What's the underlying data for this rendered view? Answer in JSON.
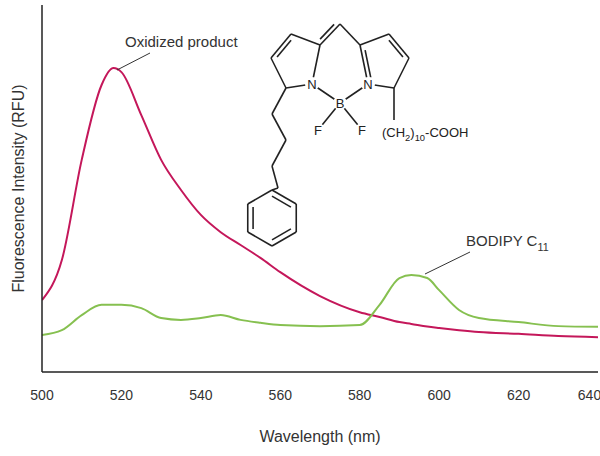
{
  "chart_data": {
    "type": "line",
    "x_label": "Wavelength (nm)",
    "y_label": "Fluorescence Intensity (RFU)",
    "x": [
      500,
      505,
      510,
      515,
      518,
      520,
      525,
      530,
      535,
      540,
      545,
      550,
      555,
      560,
      570,
      580,
      585,
      590,
      593,
      597,
      600,
      605,
      610,
      620,
      630,
      640
    ],
    "series": [
      {
        "name": "Oxidized product",
        "color": "#c4175a",
        "line_style": "solid",
        "marker": "none",
        "values": [
          19.6,
          30.5,
          57.8,
          78.2,
          82.8,
          81.7,
          70,
          57.8,
          49.6,
          42.8,
          38.1,
          34.6,
          31.1,
          27.2,
          20.7,
          16.3,
          15,
          13.6,
          13.1,
          12.4,
          12,
          11.4,
          10.9,
          10.4,
          9.8,
          9.5
        ]
      },
      {
        "name": "BODIPY C11",
        "color": "#86c050",
        "line_style": "solid",
        "marker": "none",
        "values": [
          10.1,
          11.4,
          15.5,
          18.3,
          18.3,
          18.3,
          17.4,
          14.7,
          14.2,
          14.7,
          15.5,
          14.2,
          13.4,
          12.8,
          12.5,
          12.8,
          18.3,
          25.6,
          26.4,
          25.6,
          22.3,
          16.9,
          14.7,
          13.6,
          12.5,
          12.3
        ]
      }
    ],
    "xlim": [
      500,
      640
    ],
    "xticks": [
      500,
      520,
      540,
      560,
      580,
      600,
      620,
      640
    ],
    "ylim": [
      0,
      100
    ],
    "yticks": [],
    "tick_labels": "x",
    "grid": false,
    "structure": {
      "atoms": [
        "N",
        "B",
        "N",
        "F",
        "F"
      ],
      "substituent": "(CH2)10-COOH"
    }
  }
}
